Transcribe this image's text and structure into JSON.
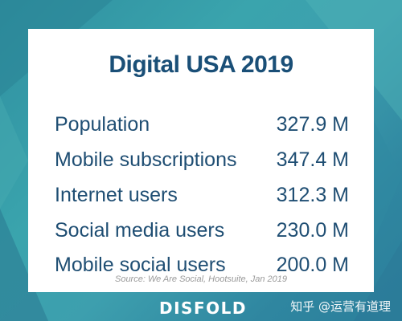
{
  "card": {
    "title": "Digital USA 2019",
    "rows": [
      {
        "label": "Population",
        "value": "327.9 M"
      },
      {
        "label": "Mobile subscriptions",
        "value": "347.4 M"
      },
      {
        "label": "Internet users",
        "value": "312.3 M"
      },
      {
        "label": "Social media users",
        "value": "230.0 M"
      },
      {
        "label": "Mobile social users",
        "value": "200.0 M"
      }
    ],
    "source": "Source: We Are Social, Hootsuite, Jan 2019"
  },
  "footer": {
    "brand": "DISFOLD",
    "watermark": "知乎 @运营有道理"
  },
  "colors": {
    "background": "#3a9fae",
    "title": "#1a4f77",
    "text": "#1f4e73",
    "source": "#9a9a9a"
  }
}
